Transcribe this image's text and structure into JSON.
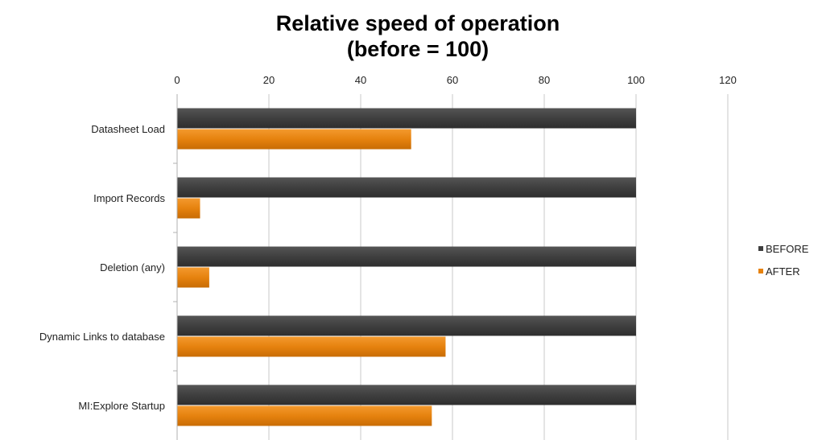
{
  "chart_data": {
    "type": "bar",
    "orientation": "horizontal",
    "title": "Relative speed of operation",
    "subtitle": "(before = 100)",
    "xlabel": "",
    "ylabel": "",
    "xlim": [
      0,
      120
    ],
    "x_ticks": [
      0,
      20,
      40,
      60,
      80,
      100,
      120
    ],
    "x_axis_position": "top",
    "grid": true,
    "legend_position": "right",
    "categories": [
      "Datasheet Load",
      "Import Records",
      "Deletion (any)",
      "Dynamic Links to database",
      "MI:Explore Startup"
    ],
    "series": [
      {
        "name": "BEFORE",
        "color": "#3f3f3f",
        "values": [
          100,
          100,
          100,
          100,
          100
        ]
      },
      {
        "name": "AFTER",
        "color": "#e6820e",
        "values": [
          51,
          5,
          7,
          58.5,
          55.5
        ]
      }
    ]
  }
}
